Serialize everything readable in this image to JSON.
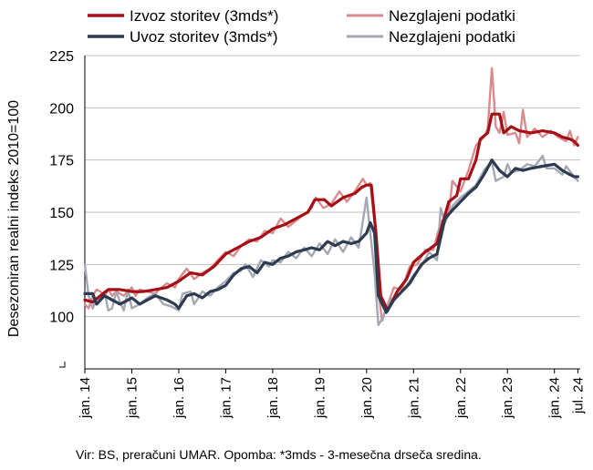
{
  "chart_data": {
    "type": "line",
    "ylabel": "Desezoniran realni indeks 2010=100",
    "ylim": [
      75,
      225
    ],
    "yticks": [
      100,
      125,
      150,
      175,
      200,
      225
    ],
    "xlim": [
      2014.0,
      2024.55
    ],
    "x_tick_labels": [
      "jan. 14",
      "jan. 15",
      "jan. 16",
      "jan. 17",
      "jan. 18",
      "jan. 19",
      "jan. 20",
      "jan. 21",
      "jan. 22",
      "jan. 23",
      "jan. 24",
      "jul. 24"
    ],
    "x_tick_positions": [
      2014.0,
      2015.0,
      2016.0,
      2017.0,
      2018.0,
      2019.0,
      2020.0,
      2021.0,
      2022.0,
      2023.0,
      2024.0,
      2024.5
    ],
    "grid": "horizontal",
    "legend_position": "top",
    "series": [
      {
        "name": "Izvoz storitev (3mds*)",
        "color": "#a50f15",
        "style": "smoothed",
        "points": [
          [
            2014.0,
            108
          ],
          [
            2014.17,
            107
          ],
          [
            2014.33,
            110
          ],
          [
            2014.5,
            113
          ],
          [
            2014.75,
            113
          ],
          [
            2015.0,
            112
          ],
          [
            2015.25,
            112
          ],
          [
            2015.5,
            113
          ],
          [
            2015.75,
            114
          ],
          [
            2016.0,
            117
          ],
          [
            2016.25,
            121
          ],
          [
            2016.5,
            120
          ],
          [
            2016.75,
            124
          ],
          [
            2017.0,
            130
          ],
          [
            2017.25,
            133
          ],
          [
            2017.5,
            136
          ],
          [
            2017.75,
            138
          ],
          [
            2018.0,
            142
          ],
          [
            2018.25,
            144
          ],
          [
            2018.5,
            147
          ],
          [
            2018.75,
            150
          ],
          [
            2018.9,
            156
          ],
          [
            2019.1,
            156
          ],
          [
            2019.25,
            153
          ],
          [
            2019.5,
            157
          ],
          [
            2019.75,
            159
          ],
          [
            2019.9,
            162
          ],
          [
            2020.0,
            163
          ],
          [
            2020.1,
            163
          ],
          [
            2020.2,
            140
          ],
          [
            2020.3,
            110
          ],
          [
            2020.45,
            103
          ],
          [
            2020.65,
            112
          ],
          [
            2020.85,
            118
          ],
          [
            2021.0,
            126
          ],
          [
            2021.25,
            131
          ],
          [
            2021.5,
            135
          ],
          [
            2021.75,
            155
          ],
          [
            2021.92,
            158
          ],
          [
            2022.0,
            166
          ],
          [
            2022.17,
            166
          ],
          [
            2022.33,
            175
          ],
          [
            2022.42,
            185
          ],
          [
            2022.58,
            188
          ],
          [
            2022.67,
            197
          ],
          [
            2022.83,
            197
          ],
          [
            2022.92,
            188
          ],
          [
            2023.08,
            191
          ],
          [
            2023.25,
            189
          ],
          [
            2023.5,
            188
          ],
          [
            2023.75,
            189
          ],
          [
            2024.0,
            188
          ],
          [
            2024.17,
            186
          ],
          [
            2024.33,
            185
          ],
          [
            2024.42,
            184
          ],
          [
            2024.5,
            182
          ]
        ]
      },
      {
        "name": "Nezglajeni podatki",
        "color": "#d98b8e",
        "style": "raw",
        "points": [
          [
            2014.0,
            106
          ],
          [
            2014.08,
            104
          ],
          [
            2014.17,
            110
          ],
          [
            2014.25,
            113
          ],
          [
            2014.33,
            112
          ],
          [
            2014.42,
            110
          ],
          [
            2014.5,
            113
          ],
          [
            2014.58,
            110
          ],
          [
            2014.67,
            112
          ],
          [
            2014.83,
            110
          ],
          [
            2015.0,
            114
          ],
          [
            2015.08,
            110
          ],
          [
            2015.17,
            113
          ],
          [
            2015.33,
            112
          ],
          [
            2015.5,
            111
          ],
          [
            2015.58,
            113
          ],
          [
            2015.75,
            116
          ],
          [
            2015.92,
            114
          ],
          [
            2016.0,
            118
          ],
          [
            2016.17,
            123
          ],
          [
            2016.33,
            118
          ],
          [
            2016.5,
            121
          ],
          [
            2016.67,
            123
          ],
          [
            2016.83,
            127
          ],
          [
            2017.0,
            131
          ],
          [
            2017.17,
            129
          ],
          [
            2017.33,
            134
          ],
          [
            2017.5,
            137
          ],
          [
            2017.67,
            136
          ],
          [
            2017.83,
            141
          ],
          [
            2018.0,
            140
          ],
          [
            2018.17,
            147
          ],
          [
            2018.33,
            143
          ],
          [
            2018.5,
            146
          ],
          [
            2018.67,
            149
          ],
          [
            2018.83,
            152
          ],
          [
            2018.92,
            157
          ],
          [
            2019.08,
            152
          ],
          [
            2019.25,
            154
          ],
          [
            2019.42,
            160
          ],
          [
            2019.58,
            155
          ],
          [
            2019.75,
            160
          ],
          [
            2019.92,
            166
          ],
          [
            2020.0,
            163
          ],
          [
            2020.08,
            164
          ],
          [
            2020.17,
            145
          ],
          [
            2020.25,
            112
          ],
          [
            2020.33,
            98
          ],
          [
            2020.42,
            104
          ],
          [
            2020.58,
            114
          ],
          [
            2020.75,
            113
          ],
          [
            2020.92,
            124
          ],
          [
            2021.08,
            125
          ],
          [
            2021.25,
            132
          ],
          [
            2021.42,
            132
          ],
          [
            2021.58,
            145
          ],
          [
            2021.75,
            150
          ],
          [
            2021.83,
            165
          ],
          [
            2022.0,
            160
          ],
          [
            2022.17,
            170
          ],
          [
            2022.33,
            182
          ],
          [
            2022.5,
            186
          ],
          [
            2022.58,
            190
          ],
          [
            2022.67,
            219
          ],
          [
            2022.75,
            191
          ],
          [
            2022.83,
            188
          ],
          [
            2022.92,
            198
          ],
          [
            2023.0,
            187
          ],
          [
            2023.17,
            188
          ],
          [
            2023.25,
            183
          ],
          [
            2023.33,
            199
          ],
          [
            2023.42,
            186
          ],
          [
            2023.58,
            190
          ],
          [
            2023.75,
            186
          ],
          [
            2023.92,
            189
          ],
          [
            2024.08,
            186
          ],
          [
            2024.25,
            184
          ],
          [
            2024.33,
            189
          ],
          [
            2024.42,
            182
          ],
          [
            2024.5,
            186
          ]
        ]
      },
      {
        "name": "Uvoz storitev (3mds*)",
        "color": "#2e3a4f",
        "style": "smoothed",
        "points": [
          [
            2014.0,
            111
          ],
          [
            2014.17,
            111
          ],
          [
            2014.25,
            106
          ],
          [
            2014.42,
            110
          ],
          [
            2014.58,
            108
          ],
          [
            2014.75,
            106
          ],
          [
            2014.92,
            108
          ],
          [
            2015.0,
            109
          ],
          [
            2015.17,
            106
          ],
          [
            2015.33,
            108
          ],
          [
            2015.5,
            110
          ],
          [
            2015.75,
            108
          ],
          [
            2015.92,
            106
          ],
          [
            2016.0,
            104
          ],
          [
            2016.17,
            110
          ],
          [
            2016.33,
            111
          ],
          [
            2016.5,
            109
          ],
          [
            2016.67,
            112
          ],
          [
            2016.83,
            113
          ],
          [
            2017.0,
            115
          ],
          [
            2017.17,
            120
          ],
          [
            2017.33,
            123
          ],
          [
            2017.5,
            124
          ],
          [
            2017.67,
            121
          ],
          [
            2017.83,
            126
          ],
          [
            2018.0,
            125
          ],
          [
            2018.17,
            128
          ],
          [
            2018.33,
            129
          ],
          [
            2018.5,
            131
          ],
          [
            2018.67,
            132
          ],
          [
            2018.83,
            133
          ],
          [
            2019.0,
            132
          ],
          [
            2019.17,
            136
          ],
          [
            2019.33,
            134
          ],
          [
            2019.5,
            136
          ],
          [
            2019.67,
            135
          ],
          [
            2019.83,
            136
          ],
          [
            2020.0,
            140
          ],
          [
            2020.08,
            145
          ],
          [
            2020.17,
            140
          ],
          [
            2020.25,
            110
          ],
          [
            2020.42,
            102
          ],
          [
            2020.58,
            108
          ],
          [
            2020.75,
            112
          ],
          [
            2020.92,
            116
          ],
          [
            2021.0,
            119
          ],
          [
            2021.17,
            125
          ],
          [
            2021.33,
            128
          ],
          [
            2021.5,
            130
          ],
          [
            2021.67,
            147
          ],
          [
            2021.83,
            151
          ],
          [
            2022.0,
            155
          ],
          [
            2022.17,
            159
          ],
          [
            2022.33,
            162
          ],
          [
            2022.5,
            168
          ],
          [
            2022.67,
            175
          ],
          [
            2022.83,
            170
          ],
          [
            2023.0,
            167
          ],
          [
            2023.17,
            171
          ],
          [
            2023.33,
            170
          ],
          [
            2023.5,
            171
          ],
          [
            2023.75,
            172
          ],
          [
            2024.0,
            173
          ],
          [
            2024.17,
            170
          ],
          [
            2024.33,
            168
          ],
          [
            2024.42,
            167
          ],
          [
            2024.5,
            167
          ]
        ]
      },
      {
        "name": "Nezglajeni podatki",
        "color": "#a3a8b3",
        "style": "raw",
        "points": [
          [
            2014.0,
            125
          ],
          [
            2014.08,
            110
          ],
          [
            2014.17,
            104
          ],
          [
            2014.25,
            109
          ],
          [
            2014.33,
            108
          ],
          [
            2014.42,
            112
          ],
          [
            2014.5,
            103
          ],
          [
            2014.58,
            104
          ],
          [
            2014.67,
            112
          ],
          [
            2014.75,
            107
          ],
          [
            2014.83,
            103
          ],
          [
            2014.92,
            113
          ],
          [
            2015.0,
            104
          ],
          [
            2015.17,
            106
          ],
          [
            2015.33,
            109
          ],
          [
            2015.5,
            111
          ],
          [
            2015.67,
            106
          ],
          [
            2015.83,
            105
          ],
          [
            2016.0,
            103
          ],
          [
            2016.08,
            111
          ],
          [
            2016.25,
            112
          ],
          [
            2016.33,
            106
          ],
          [
            2016.5,
            112
          ],
          [
            2016.67,
            110
          ],
          [
            2016.83,
            114
          ],
          [
            2017.0,
            117
          ],
          [
            2017.17,
            121
          ],
          [
            2017.33,
            122
          ],
          [
            2017.42,
            125
          ],
          [
            2017.58,
            119
          ],
          [
            2017.75,
            127
          ],
          [
            2017.92,
            124
          ],
          [
            2018.0,
            127
          ],
          [
            2018.17,
            126
          ],
          [
            2018.33,
            131
          ],
          [
            2018.5,
            128
          ],
          [
            2018.67,
            133
          ],
          [
            2018.83,
            129
          ],
          [
            2019.0,
            135
          ],
          [
            2019.17,
            130
          ],
          [
            2019.33,
            137
          ],
          [
            2019.5,
            131
          ],
          [
            2019.67,
            138
          ],
          [
            2019.83,
            133
          ],
          [
            2020.0,
            157
          ],
          [
            2020.08,
            140
          ],
          [
            2020.17,
            121
          ],
          [
            2020.25,
            96
          ],
          [
            2020.33,
            99
          ],
          [
            2020.5,
            108
          ],
          [
            2020.67,
            110
          ],
          [
            2020.83,
            114
          ],
          [
            2021.0,
            120
          ],
          [
            2021.17,
            124
          ],
          [
            2021.33,
            131
          ],
          [
            2021.5,
            127
          ],
          [
            2021.58,
            152
          ],
          [
            2021.67,
            145
          ],
          [
            2021.83,
            153
          ],
          [
            2022.0,
            157
          ],
          [
            2022.17,
            160
          ],
          [
            2022.33,
            163
          ],
          [
            2022.5,
            170
          ],
          [
            2022.58,
            172
          ],
          [
            2022.67,
            174
          ],
          [
            2022.75,
            165
          ],
          [
            2022.92,
            167
          ],
          [
            2023.0,
            173
          ],
          [
            2023.08,
            169
          ],
          [
            2023.25,
            170
          ],
          [
            2023.42,
            173
          ],
          [
            2023.58,
            172
          ],
          [
            2023.75,
            177
          ],
          [
            2023.83,
            171
          ],
          [
            2024.0,
            171
          ],
          [
            2024.17,
            168
          ],
          [
            2024.25,
            172
          ],
          [
            2024.42,
            167
          ],
          [
            2024.5,
            165
          ]
        ]
      }
    ],
    "legend": [
      {
        "label": "Izvoz storitev (3mds*)",
        "color": "#a50f15"
      },
      {
        "label": "Nezglajeni podatki",
        "color": "#d98b8e"
      },
      {
        "label": "Uvoz storitev (3mds*)",
        "color": "#2e3a4f"
      },
      {
        "label": "Nezglajeni podatki",
        "color": "#a3a8b3"
      }
    ],
    "footnote": "Vir: BS, preračuni UMAR. Opomba: *3mds - 3-mesečna drseča sredina."
  }
}
